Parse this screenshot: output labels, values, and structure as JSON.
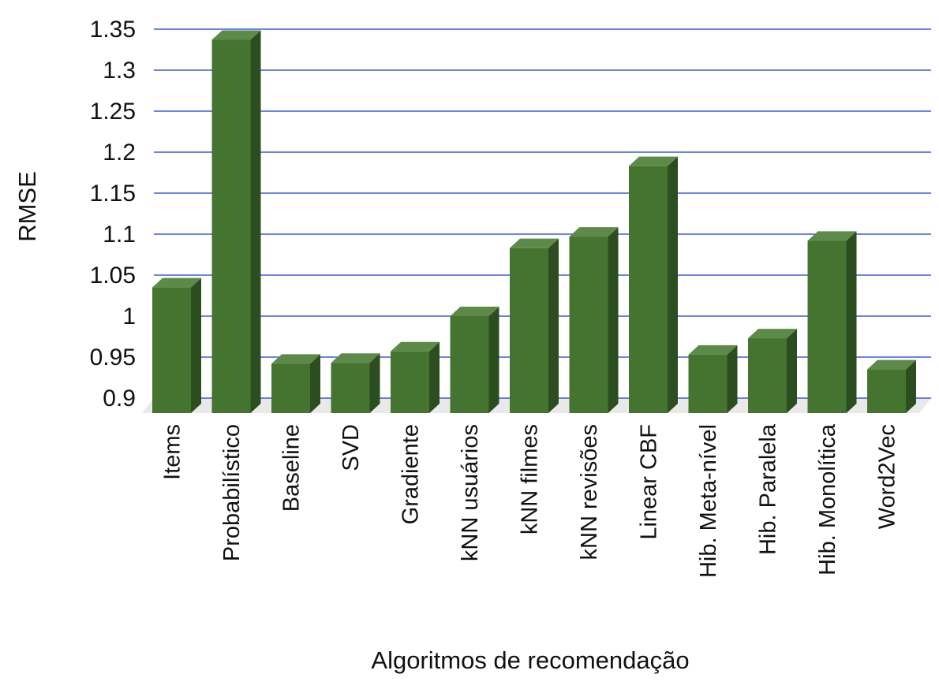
{
  "chart_data": {
    "type": "bar",
    "style": "3d",
    "title": "",
    "xlabel": "Algoritmos de recomendação",
    "ylabel": "RMSE",
    "ylim": [
      0.9,
      1.35
    ],
    "yticks": [
      "0.9",
      "0.95",
      "1",
      "1.05",
      "1.1",
      "1.15",
      "1.2",
      "1.25",
      "1.3",
      "1.35"
    ],
    "grid": true,
    "legend": "none",
    "categories": [
      "Items",
      "Probabilístico",
      "Baseline",
      "SVD",
      "Gradiente",
      "kNN usuários",
      "kNN filmes",
      "kNN revisões",
      "Linear CBF",
      "Hib. Meta-nível",
      "Hib. Paralela",
      "Hib. Monolítica",
      "Word2Vec"
    ],
    "values": [
      1.035,
      1.337,
      0.942,
      0.943,
      0.957,
      1.0,
      1.083,
      1.097,
      1.183,
      0.953,
      0.973,
      1.092,
      0.935
    ],
    "colors": {
      "bar_front": "#457330",
      "bar_top": "#5d8a49",
      "bar_side": "#2c4d1f",
      "grid": "#3b5bdb",
      "floor": "#e9e9e9"
    }
  }
}
